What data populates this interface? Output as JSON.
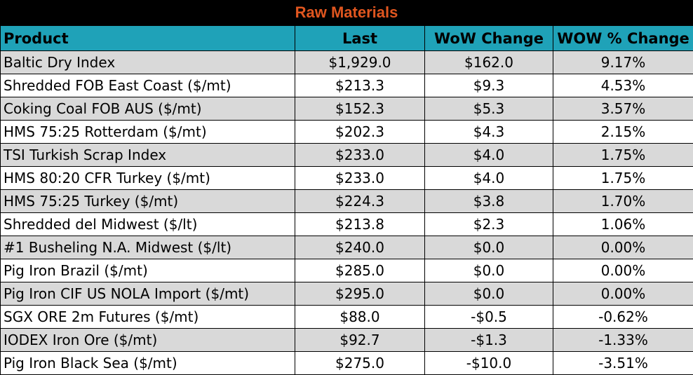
{
  "title": "Raw Materials",
  "headers": [
    "Product",
    "Last",
    "WoW Change",
    "WOW % Change"
  ],
  "rows": [
    {
      "product": "Baltic Dry Index",
      "last": "$1,929.0",
      "wow": "$162.0",
      "pct": "9.17%"
    },
    {
      "product": "Shredded FOB East Coast ($/mt)",
      "last": "$213.3",
      "wow": "$9.3",
      "pct": "4.53%"
    },
    {
      "product": "Coking Coal FOB AUS ($/mt)",
      "last": "$152.3",
      "wow": "$5.3",
      "pct": "3.57%"
    },
    {
      "product": "HMS 75:25 Rotterdam ($/mt)",
      "last": "$202.3",
      "wow": "$4.3",
      "pct": "2.15%"
    },
    {
      "product": "TSI Turkish Scrap Index",
      "last": "$233.0",
      "wow": "$4.0",
      "pct": "1.75%"
    },
    {
      "product": "HMS 80:20 CFR Turkey ($/mt)",
      "last": "$233.0",
      "wow": "$4.0",
      "pct": "1.75%"
    },
    {
      "product": "HMS 75:25 Turkey ($/mt)",
      "last": "$224.3",
      "wow": "$3.8",
      "pct": "1.70%"
    },
    {
      "product": "Shredded del  Midwest ($/lt)",
      "last": "$213.8",
      "wow": "$2.3",
      "pct": "1.06%"
    },
    {
      "product": "#1 Busheling N.A. Midwest ($/lt)",
      "last": "$240.0",
      "wow": "$0.0",
      "pct": "0.00%"
    },
    {
      "product": "Pig Iron Brazil ($/mt)",
      "last": "$285.0",
      "wow": "$0.0",
      "pct": "0.00%"
    },
    {
      "product": "Pig Iron CIF US NOLA Import ($/mt)",
      "last": "$295.0",
      "wow": "$0.0",
      "pct": "0.00%"
    },
    {
      "product": "SGX ORE 2m Futures ($/mt)",
      "last": "$88.0",
      "wow": "-$0.5",
      "pct": "-0.62%"
    },
    {
      "product": "IODEX  Iron Ore ($/mt)",
      "last": "$92.7",
      "wow": "-$1.3",
      "pct": "-1.33%"
    },
    {
      "product": "Pig Iron Black Sea ($/mt)",
      "last": "$275.0",
      "wow": "-$10.0",
      "pct": "-3.51%"
    }
  ],
  "colors": {
    "title_bg": "#000000",
    "title_text": "#e0561f",
    "header_bg": "#1fa2b8",
    "shade_row": "#d9d9d9"
  }
}
